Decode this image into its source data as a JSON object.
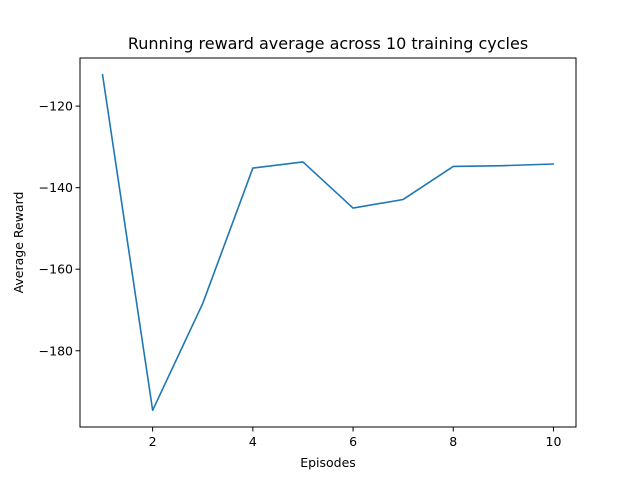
{
  "chart_data": {
    "type": "line",
    "title": "Running reward average across 10 training cycles",
    "xlabel": "Episodes",
    "ylabel": "Average Reward",
    "x": [
      1,
      2,
      3,
      4,
      5,
      6,
      7,
      8,
      9,
      10
    ],
    "series": [
      {
        "values": [
          -112.3,
          -194.6,
          -168.4,
          -135.2,
          -133.7,
          -145.0,
          -142.9,
          -134.8,
          -134.6,
          -134.2
        ],
        "color": "#1f77b4"
      }
    ],
    "xlim": [
      0.55,
      10.45
    ],
    "ylim": [
      -198.7,
      -108.2
    ],
    "xticks": [
      2,
      4,
      6,
      8,
      10
    ],
    "yticks": [
      -180,
      -160,
      -140,
      -120
    ],
    "ytick_labels": [
      "−180",
      "−160",
      "−140",
      "−120"
    ],
    "grid": false,
    "legend": "none"
  }
}
